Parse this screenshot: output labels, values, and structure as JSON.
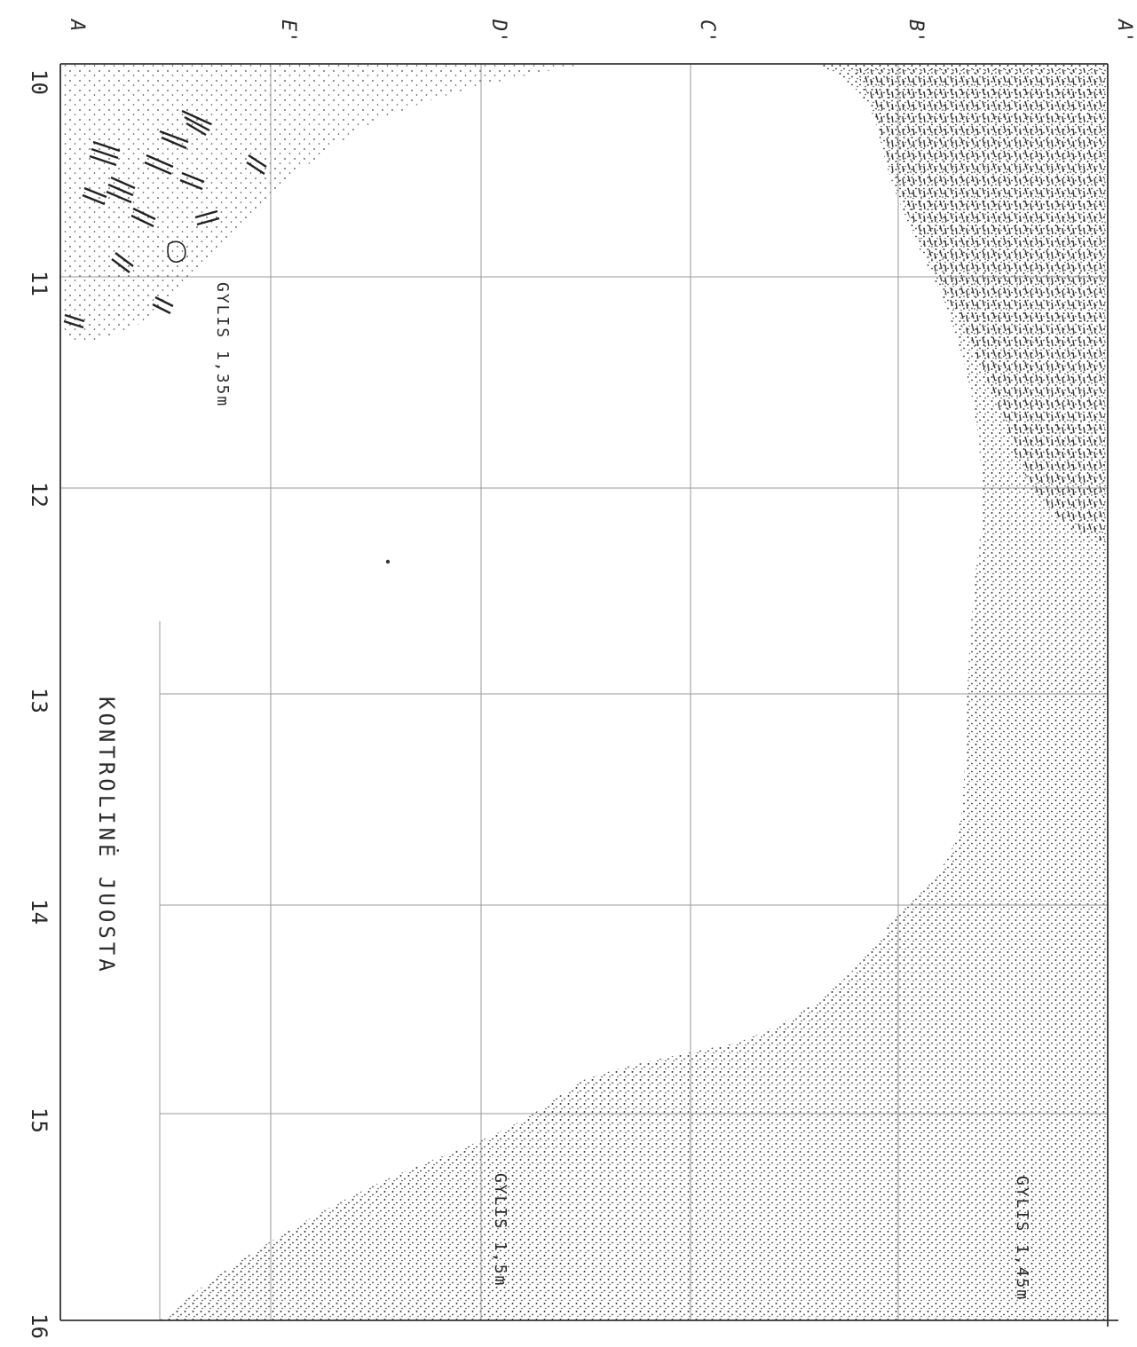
{
  "grid": {
    "row_numbers": [
      "10",
      "11",
      "12",
      "13",
      "14",
      "15",
      "16"
    ],
    "column_letters": [
      "A",
      "E'",
      "D'",
      "C'",
      "B'",
      "A'"
    ]
  },
  "labels": {
    "depth_top": "GYLIS 1,35m",
    "depth_bottom_center": "GYLIS 1,5m",
    "depth_bottom_right": "GYLIS 1,45m",
    "control_strip": "KONTROLINĖ JUOSTA"
  },
  "legend": {
    "subsoil_fill": "stipple",
    "stones": "hatched-fragments",
    "clay_zone": "tick-marks"
  },
  "colors": {
    "ink": "#2a2a2a",
    "paper": "#ffffff",
    "grid": "#9a9a9a"
  }
}
